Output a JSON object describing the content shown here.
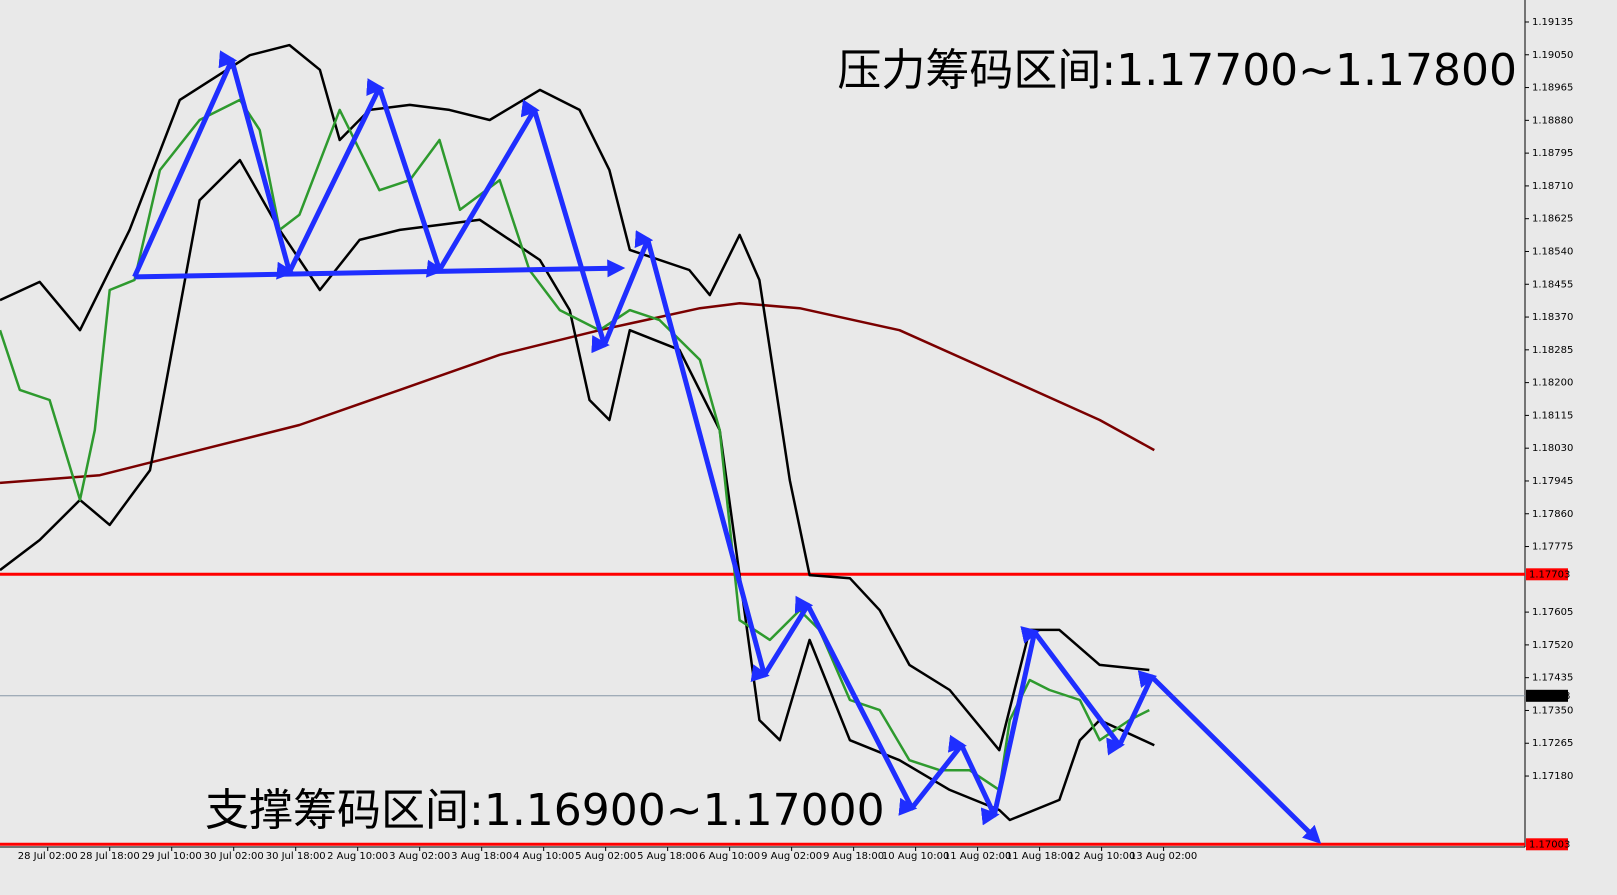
{
  "chart_data": {
    "type": "line",
    "annotations": [
      "压力筹码区间:1.17700~1.17800",
      "支撑筹码区间:1.16900~1.17000"
    ],
    "categories": [
      "28 Jul 02:00",
      "28 Jul 18:00",
      "29 Jul 10:00",
      "30 Jul 02:00",
      "30 Jul 18:00",
      "2 Aug 10:00",
      "3 Aug 02:00",
      "3 Aug 18:00",
      "4 Aug 10:00",
      "5 Aug 02:00",
      "5 Aug 18:00",
      "6 Aug 10:00",
      "9 Aug 02:00",
      "9 Aug 18:00",
      "10 Aug 10:00",
      "11 Aug 02:00",
      "11 Aug 18:00",
      "12 Aug 10:00",
      "13 Aug 02:00"
    ],
    "xlim": [
      -0.77,
      23.83
    ],
    "ylim": [
      1.16996,
      1.19192
    ],
    "yticks": [
      1.19135,
      {
        "value": 1.1905,
        "label": "1.19050"
      },
      1.18965,
      {
        "value": 1.1888,
        "label": "1.18880"
      },
      1.18795,
      {
        "value": 1.1871,
        "label": "1.18710"
      },
      1.18625,
      {
        "value": 1.1854,
        "label": "1.18540"
      },
      1.18455,
      {
        "value": 1.1837,
        "label": "1.18370"
      },
      1.18285,
      {
        "value": 1.182,
        "label": "1.18200"
      },
      1.18115,
      {
        "value": 1.1803,
        "label": "1.18030"
      },
      1.17945,
      {
        "value": 1.1786,
        "label": "1.17860"
      },
      1.17775,
      1.17605,
      {
        "value": 1.1752,
        "label": "1.17520"
      },
      1.17435,
      {
        "value": 1.1735,
        "label": "1.17350"
      },
      1.17265,
      {
        "value": 1.1718,
        "label": "1.17180"
      }
    ],
    "hlines": [
      {
        "value": 1.17703,
        "label": "1.17703",
        "color": "#ff0000"
      },
      {
        "value": 1.17388,
        "label": "1.17388",
        "color": "#8898a8"
      },
      {
        "value": 1.17003,
        "label": "1.17003",
        "color": "#ff0000"
      }
    ],
    "series": [
      {
        "color": "#7a0000",
        "style": "line",
        "x": [
          -0.77,
          0.84,
          2.45,
          4.06,
          5.68,
          7.29,
          8.9,
          10.52,
          11.16,
          12.13,
          13.74,
          15.35,
          16.97,
          17.85
        ],
        "values": [
          1.1794,
          1.1796,
          1.18025,
          1.1809,
          1.18181,
          1.18272,
          1.18336,
          1.18393,
          1.18406,
          1.18393,
          1.18336,
          1.1822,
          1.18103,
          1.18025
        ]
      },
      {
        "color": "#000000",
        "style": "line",
        "x": [
          -0.77,
          -0.13,
          0.52,
          1.32,
          2.13,
          3.26,
          3.9,
          4.39,
          4.71,
          5.19,
          5.84,
          6.48,
          7.13,
          7.94,
          8.58,
          9.06,
          9.39,
          10.35,
          10.68,
          11.16,
          11.48,
          11.97,
          12.29,
          12.94,
          13.42,
          13.9,
          14.55,
          15.35,
          15.84,
          16.32,
          16.97,
          17.77
        ],
        "values": [
          1.18414,
          1.18461,
          1.18336,
          1.18596,
          1.18933,
          1.19049,
          1.19075,
          1.19011,
          1.18829,
          1.18907,
          1.1892,
          1.18907,
          1.18881,
          1.18959,
          1.18907,
          1.18751,
          1.18544,
          1.18492,
          1.18427,
          1.18583,
          1.18466,
          1.17947,
          1.17701,
          1.17693,
          1.1761,
          1.17468,
          1.17403,
          1.17247,
          1.17559,
          1.17559,
          1.17468,
          1.17455
        ]
      },
      {
        "color": "#000000",
        "style": "line",
        "x": [
          -0.77,
          -0.13,
          0.52,
          1.0,
          1.65,
          2.45,
          3.1,
          3.74,
          4.39,
          5.03,
          5.68,
          6.32,
          6.97,
          7.94,
          8.42,
          8.74,
          9.06,
          9.39,
          10.19,
          10.84,
          11.48,
          11.81,
          12.29,
          12.94,
          13.74,
          14.55,
          15.35,
          15.52,
          16.32,
          16.65,
          16.97,
          17.85
        ],
        "values": [
          1.17714,
          1.17792,
          1.17896,
          1.17831,
          1.17973,
          1.18673,
          1.18777,
          1.18596,
          1.1844,
          1.1857,
          1.18596,
          1.18609,
          1.18622,
          1.18518,
          1.18388,
          1.18155,
          1.18103,
          1.18336,
          1.18285,
          1.18077,
          1.17325,
          1.17273,
          1.17533,
          1.17273,
          1.17221,
          1.17144,
          1.17092,
          1.17066,
          1.17118,
          1.17273,
          1.17325,
          1.1726
        ]
      },
      {
        "color": "#2e9a2e",
        "style": "line",
        "x": [
          -0.77,
          -0.45,
          0.03,
          0.52,
          0.76,
          1.0,
          1.4,
          1.81,
          2.45,
          3.1,
          3.42,
          3.74,
          4.06,
          4.71,
          5.35,
          5.84,
          6.32,
          6.65,
          7.29,
          7.77,
          8.26,
          8.9,
          9.39,
          9.87,
          10.52,
          10.84,
          11.16,
          11.65,
          12.13,
          12.45,
          12.94,
          13.42,
          13.9,
          14.39,
          14.87,
          15.35,
          15.52,
          15.84,
          16.16,
          16.65,
          16.97,
          17.45,
          17.77
        ],
        "values": [
          1.18336,
          1.18181,
          1.18155,
          1.17896,
          1.18077,
          1.1844,
          1.18466,
          1.18751,
          1.18881,
          1.18933,
          1.18855,
          1.18596,
          1.18635,
          1.18907,
          1.18699,
          1.18725,
          1.18829,
          1.18648,
          1.18725,
          1.18492,
          1.18388,
          1.18336,
          1.18388,
          1.18362,
          1.18259,
          1.18077,
          1.17584,
          1.17533,
          1.1761,
          1.17559,
          1.17377,
          1.17351,
          1.17221,
          1.17195,
          1.17195,
          1.17144,
          1.17325,
          1.17429,
          1.17403,
          1.17377,
          1.17273,
          1.17325,
          1.17351
        ]
      },
      {
        "color": "#1f2eff",
        "style": "arrow",
        "x": [
          1.4,
          9.23
        ],
        "values": [
          1.18474,
          1.18497
        ]
      },
      {
        "color": "#1f2eff",
        "style": "arrow",
        "x": [
          1.4,
          2.97,
          3.9,
          5.35,
          6.32,
          7.85,
          8.98,
          9.68,
          11.56,
          12.26,
          13.94,
          14.74,
          15.27,
          15.92,
          17.29,
          17.81,
          20.48
        ],
        "values": [
          1.18474,
          1.19036,
          1.18487,
          1.18964,
          1.18492,
          1.18907,
          1.18298,
          1.1857,
          1.17442,
          1.17623,
          1.17097,
          1.1726,
          1.17079,
          1.17553,
          1.1726,
          1.17437,
          1.17014
        ]
      }
    ]
  }
}
